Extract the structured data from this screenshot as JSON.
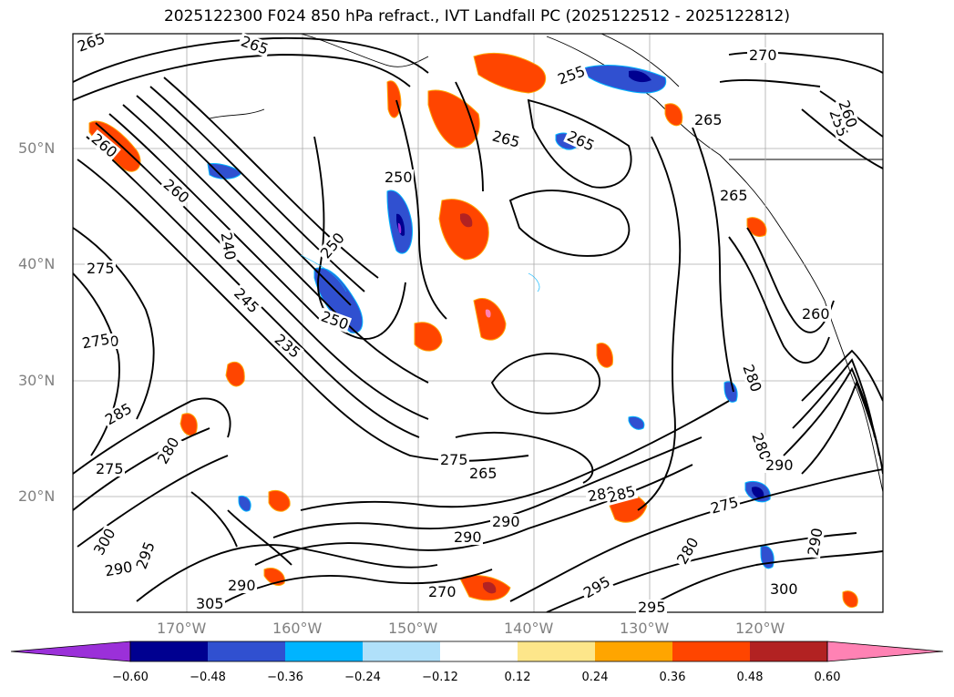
{
  "title": "2025122300 F024 850 hPa refract., IVT Landfall PC (2025122512 - 2025122812)",
  "lat_labels": [
    "50°N",
    "40°N",
    "30°N",
    "20°N"
  ],
  "lon_labels": [
    "170°W",
    "160°W",
    "150°W",
    "140°W",
    "130°W",
    "120°W"
  ],
  "contour_labels": [
    "265",
    "265",
    "265",
    "255",
    "265",
    "265",
    "270",
    "250",
    "260",
    "250",
    "250",
    "240",
    "235",
    "245",
    "260",
    "275",
    "270",
    "275",
    "285",
    "280",
    "275",
    "300",
    "290",
    "295",
    "305",
    "290",
    "270",
    "290",
    "265",
    "275",
    "280",
    "285",
    "290",
    "295",
    "280",
    "300",
    "295",
    "290",
    "280",
    "275",
    "280",
    "290",
    "260",
    "255",
    "260",
    "265"
  ],
  "colorbar": {
    "ticks": [
      "−0.60",
      "−0.48",
      "−0.36",
      "−0.24",
      "−0.12",
      "0.12",
      "0.24",
      "0.36",
      "0.48",
      "0.60"
    ],
    "colors": [
      "#9b30d9",
      "#000090",
      "#3050d0",
      "#00b4ff",
      "#b0e0fa",
      "#ffffff",
      "#fde68a",
      "#ffa500",
      "#ff4500",
      "#b22222",
      "#ff82b4"
    ]
  }
}
